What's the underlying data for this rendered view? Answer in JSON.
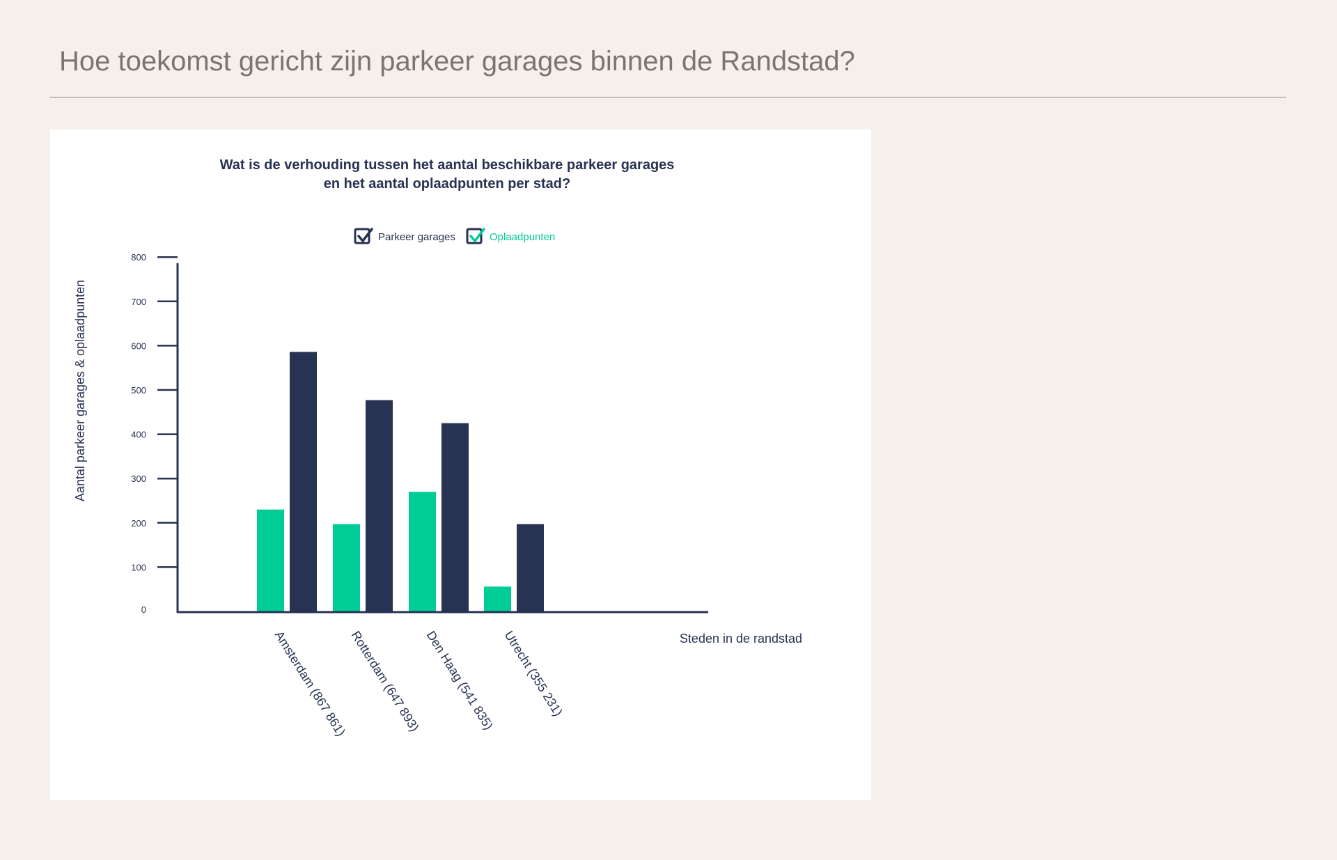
{
  "page": {
    "title": "Hoe toekomst gericht zijn parkeer garages binnen de Randstad?"
  },
  "colors": {
    "background": "#f5f0ea",
    "parkeer_garages": "#283252",
    "oplaadpunten": "#00cc96",
    "axis": "#283252"
  },
  "chart_data": {
    "type": "bar",
    "title": "Wat is de verhouding tussen het aantal beschikbare parkeer garages",
    "subtitle": "en het aantal oplaadpunten per stad?",
    "xlabel": "Steden in de randstad",
    "ylabel": "Aantal parkeer garages & oplaadpunten",
    "categories": [
      "Amsterdam (867 861)",
      "Rotterdam (647 893)",
      "Den Haag (541 835)",
      "Utrecht (355 231)"
    ],
    "series": [
      {
        "name": "Oplaadpunten",
        "values": [
          230,
          197,
          270,
          56
        ],
        "color": "#00cc96"
      },
      {
        "name": "Parkeer garages",
        "values": [
          586,
          477,
          425,
          197
        ],
        "color": "#283252"
      }
    ],
    "legend": [
      {
        "label": "Parkeer garages",
        "checked": true,
        "color": "#283252"
      },
      {
        "label": "Oplaadpunten",
        "checked": true,
        "color": "#00cc96"
      }
    ],
    "yticks": [
      0,
      100,
      200,
      300,
      400,
      500,
      600,
      700,
      800
    ],
    "ylim": [
      0,
      800
    ],
    "grid": false,
    "legend_placement": "top-center"
  }
}
